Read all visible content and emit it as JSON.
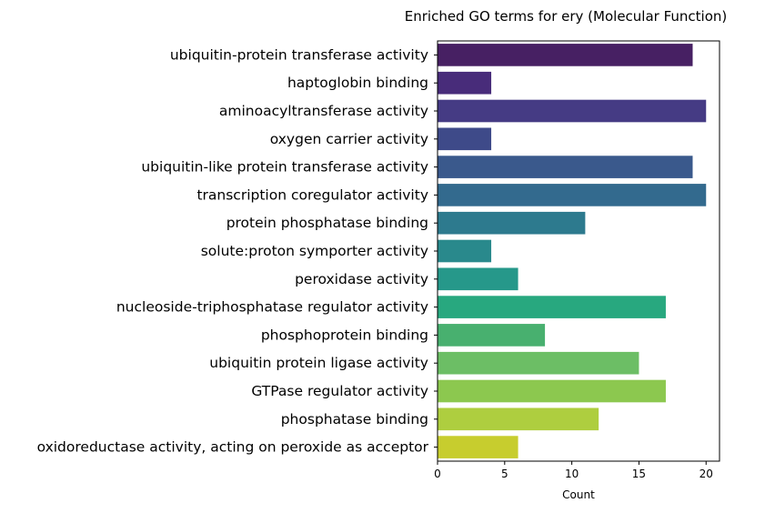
{
  "chart_data": {
    "type": "bar",
    "orientation": "horizontal",
    "title": "Enriched GO terms for ery (Molecular Function)",
    "xlabel": "Count",
    "ylabel": "",
    "xlim": [
      0,
      21
    ],
    "xticks": [
      0,
      5,
      10,
      15,
      20
    ],
    "xtick_labels": [
      "0",
      "5",
      "10",
      "15",
      "20"
    ],
    "grid": false,
    "categories": [
      "ubiquitin-protein transferase activity",
      "haptoglobin binding",
      "aminoacyltransferase activity",
      "oxygen carrier activity",
      "ubiquitin-like protein transferase activity",
      "transcription coregulator activity",
      "protein phosphatase binding",
      "solute:proton symporter activity",
      "peroxidase activity",
      "nucleoside-triphosphatase regulator activity",
      "phosphoprotein binding",
      "ubiquitin protein ligase activity",
      "GTPase regulator activity",
      "phosphatase binding",
      "oxidoreductase activity, acting on peroxide as acceptor"
    ],
    "values": [
      19,
      4,
      20,
      4,
      19,
      20,
      11,
      4,
      6,
      17,
      8,
      15,
      17,
      12,
      6
    ],
    "colors": [
      "#472063",
      "#482c7a",
      "#453b84",
      "#3e4a89",
      "#3a598c",
      "#336a8e",
      "#2d7a8e",
      "#29898c",
      "#26988a",
      "#28a87f",
      "#48b06f",
      "#6cbe65",
      "#8cc84f",
      "#aece3f",
      "#c7cd2e"
    ]
  }
}
